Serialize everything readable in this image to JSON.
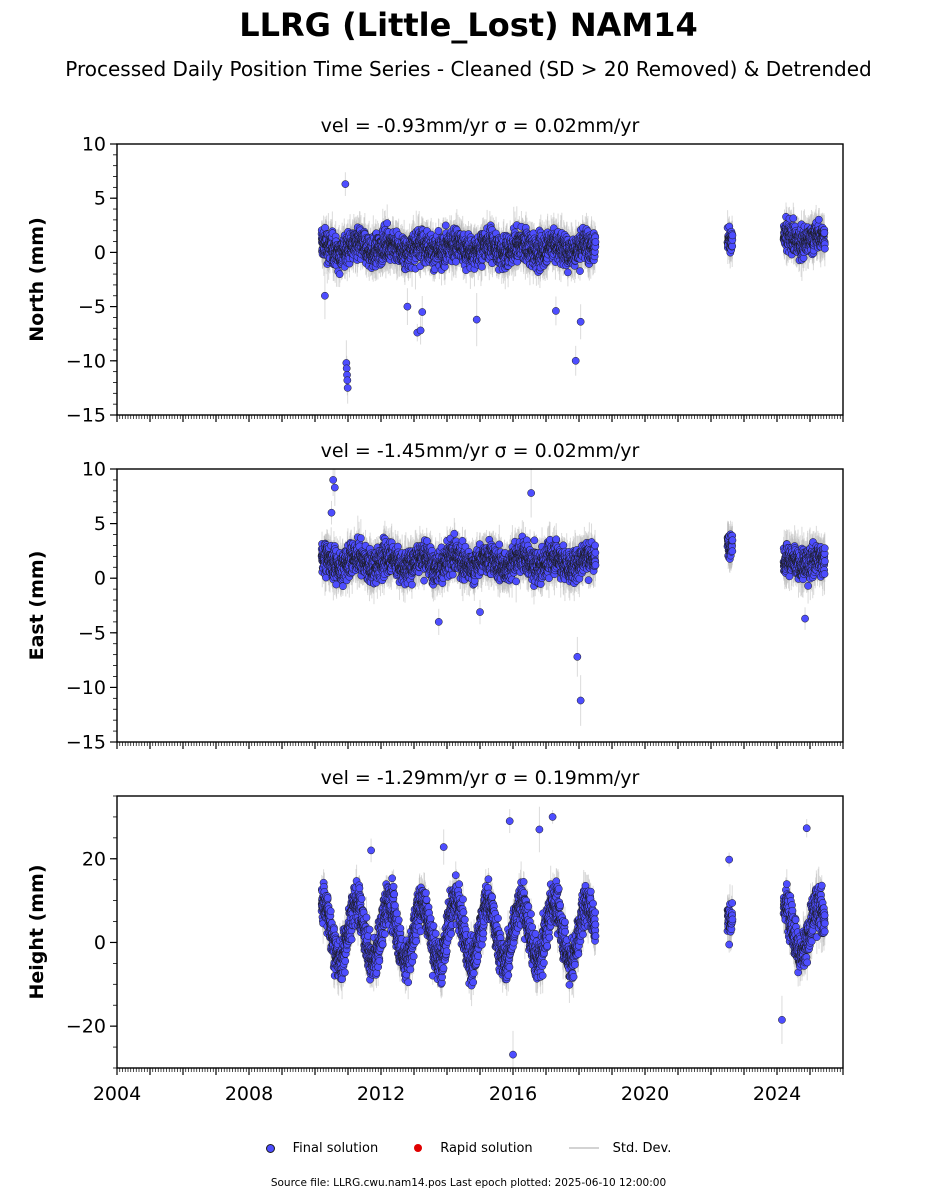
{
  "title": "LLRG (Little_Lost) NAM14",
  "subtitle": "Processed Daily Position Time Series - Cleaned (SD > 20 Removed) & Detrended",
  "colors": {
    "final": "#4d4dff",
    "rapid": "#e00000",
    "stddev": "#bdbdbd"
  },
  "legend": {
    "final": "Final solution",
    "rapid": "Rapid solution",
    "stddev": "Std. Dev."
  },
  "footer": "Source file: LLRG.cwu.nam14.pos  Last epoch plotted: 2025-06-10 12:00:00",
  "chart_data": [
    {
      "type": "scatter",
      "panel": "north",
      "title": "vel = -0.93mm/yr   σ = 0.02mm/yr",
      "ylabel": "North (mm)",
      "xlim": [
        2004,
        2026
      ],
      "ylim": [
        -15,
        10
      ],
      "yticks": [
        -15,
        -10,
        -5,
        0,
        5,
        10
      ],
      "xticks": [
        2004,
        2008,
        2012,
        2016,
        2020,
        2024
      ],
      "segments": [
        {
          "start": 2010.2,
          "end": 2018.5,
          "mean": 0.4,
          "spread": 1.4,
          "amp": 0.4
        },
        {
          "start": 2022.5,
          "end": 2022.65,
          "mean": 1.2,
          "spread": 1.0,
          "amp": 0.2
        },
        {
          "start": 2024.2,
          "end": 2025.45,
          "mean": 1.2,
          "spread": 1.3,
          "amp": 0.3
        }
      ],
      "outliers": [
        [
          2010.92,
          6.3
        ],
        [
          2010.95,
          -10.2
        ],
        [
          2010.96,
          -10.7
        ],
        [
          2010.97,
          -11.3
        ],
        [
          2010.98,
          -11.8
        ],
        [
          2010.99,
          -12.5
        ],
        [
          2013.1,
          -7.4
        ],
        [
          2013.2,
          -7.2
        ],
        [
          2013.25,
          -5.5
        ],
        [
          2012.8,
          -5.0
        ],
        [
          2014.9,
          -6.2
        ],
        [
          2017.9,
          -10.0
        ],
        [
          2018.05,
          -6.4
        ],
        [
          2010.3,
          -4.0
        ],
        [
          2017.3,
          -5.4
        ]
      ]
    },
    {
      "type": "scatter",
      "panel": "east",
      "title": "vel = -1.45mm/yr   σ = 0.02mm/yr",
      "ylabel": "East (mm)",
      "xlim": [
        2004,
        2026
      ],
      "ylim": [
        -15,
        10
      ],
      "yticks": [
        -15,
        -10,
        -5,
        0,
        5,
        10
      ],
      "xticks": [
        2004,
        2008,
        2012,
        2016,
        2020,
        2024
      ],
      "segments": [
        {
          "start": 2010.2,
          "end": 2018.5,
          "mean": 1.5,
          "spread": 1.4,
          "amp": 0.5
        },
        {
          "start": 2022.5,
          "end": 2022.65,
          "mean": 3.2,
          "spread": 1.0,
          "amp": 0.2
        },
        {
          "start": 2024.2,
          "end": 2025.45,
          "mean": 1.5,
          "spread": 1.4,
          "amp": 0.3
        }
      ],
      "outliers": [
        [
          2010.55,
          9.0
        ],
        [
          2010.6,
          8.3
        ],
        [
          2016.55,
          7.8
        ],
        [
          2010.5,
          6.0
        ],
        [
          2017.95,
          -7.2
        ],
        [
          2018.05,
          -11.2
        ],
        [
          2013.75,
          -4.0
        ],
        [
          2024.85,
          -3.7
        ],
        [
          2015.0,
          -3.1
        ]
      ]
    },
    {
      "type": "scatter",
      "panel": "height",
      "title": "vel = -1.29mm/yr   σ = 0.19mm/yr",
      "ylabel": "Height (mm)",
      "xlim": [
        2004,
        2026
      ],
      "ylim": [
        -30,
        35
      ],
      "yticks": [
        -20,
        0,
        20
      ],
      "xticks": [
        2004,
        2008,
        2012,
        2016,
        2020,
        2024
      ],
      "segments": [
        {
          "start": 2010.2,
          "end": 2018.5,
          "mean": 2.5,
          "spread": 4.8,
          "amp": 7.0
        },
        {
          "start": 2022.5,
          "end": 2022.65,
          "mean": 6.0,
          "spread": 4.0,
          "amp": 1.0
        },
        {
          "start": 2024.2,
          "end": 2025.45,
          "mean": 3.0,
          "spread": 5.0,
          "amp": 6.0
        }
      ],
      "outliers": [
        [
          2015.9,
          29.0
        ],
        [
          2017.2,
          30.0
        ],
        [
          2016.0,
          -26.8
        ],
        [
          2024.15,
          -18.5
        ],
        [
          2024.9,
          27.3
        ],
        [
          2022.55,
          19.8
        ],
        [
          2011.7,
          22.0
        ],
        [
          2016.8,
          27.0
        ],
        [
          2013.9,
          22.8
        ]
      ]
    }
  ]
}
